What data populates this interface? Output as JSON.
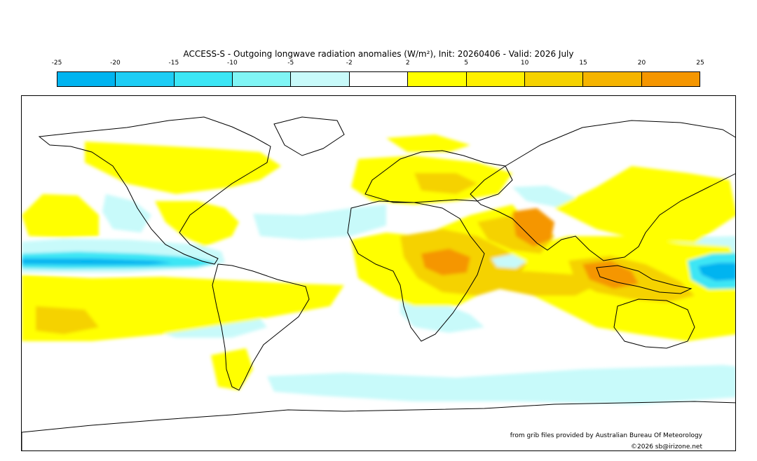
{
  "title": "ACCESS-S - Outgoing longwave radiation anomalies (W/m²), Init: 20260406 - Valid: 2026 July",
  "legend": {
    "ticks": [
      "-25",
      "-20",
      "-15",
      "-10",
      "-5",
      "-2",
      "2",
      "5",
      "10",
      "15",
      "20",
      "25"
    ],
    "colors": [
      "#00b4f0",
      "#1ecdf5",
      "#3ce6f5",
      "#80f5f5",
      "#c8fafa",
      "#ffffff",
      "#ffff00",
      "#fff000",
      "#f5d200",
      "#f5b400",
      "#f59600"
    ]
  },
  "map": {
    "projection": "global equirectangular",
    "anomaly_colors": {
      "strong_negative": "#00b4f0",
      "negative": "#3ce6f5",
      "weak_negative": "#c8fafa",
      "weak_positive": "#ffff00",
      "positive": "#f5d200",
      "strong_positive": "#f59600"
    }
  },
  "credits": {
    "source": "from grib files provided by Australian Bureau Of Meteorology",
    "copyright": "©2026 sb@irizone.net"
  }
}
